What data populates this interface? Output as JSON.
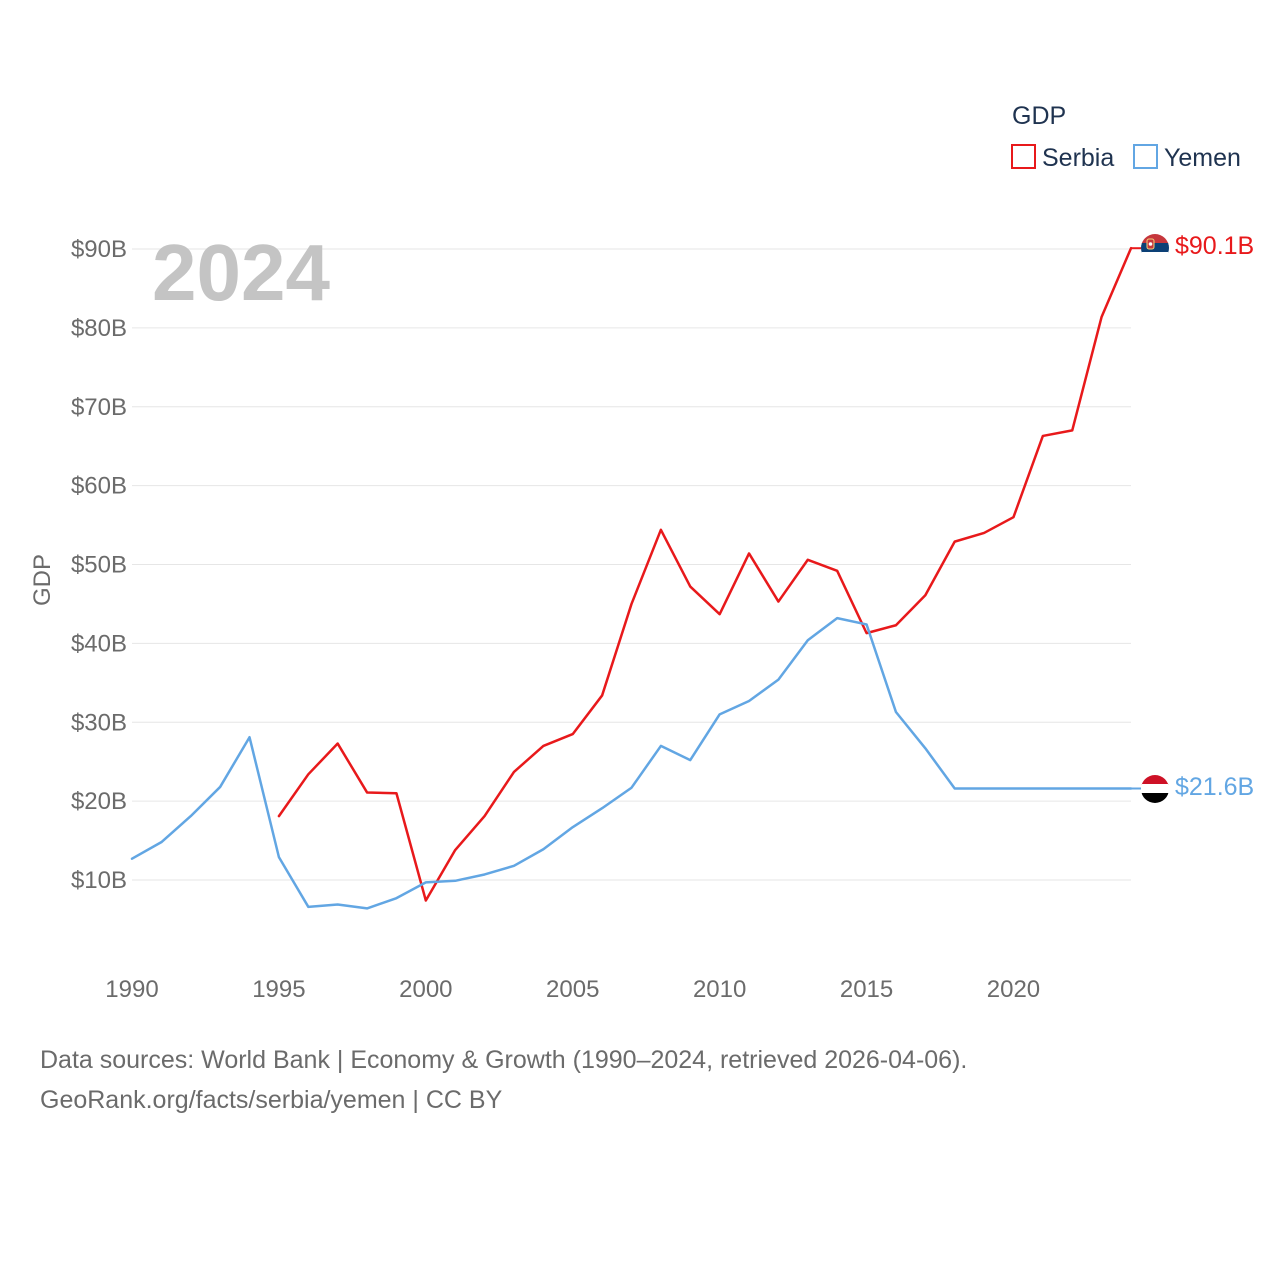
{
  "chart_data": {
    "type": "line",
    "year_label": "2024",
    "ylabel": "GDP",
    "legend_title": "GDP",
    "ylim": [
      0,
      95
    ],
    "xlim": [
      1990,
      2024
    ],
    "x_ticks": [
      1990,
      1995,
      2000,
      2005,
      2010,
      2015,
      2020
    ],
    "y_ticks": [
      {
        "value": 10,
        "label": "$10B"
      },
      {
        "value": 20,
        "label": "$20B"
      },
      {
        "value": 30,
        "label": "$30B"
      },
      {
        "value": 40,
        "label": "$40B"
      },
      {
        "value": 50,
        "label": "$50B"
      },
      {
        "value": 60,
        "label": "$60B"
      },
      {
        "value": 70,
        "label": "$70B"
      },
      {
        "value": 80,
        "label": "$80B"
      },
      {
        "value": 90,
        "label": "$90B"
      }
    ],
    "series": [
      {
        "name": "Serbia",
        "color": "#e8191b",
        "end_label": "$90.1B",
        "flag": "serbia-flag",
        "x": [
          1995,
          1996,
          1997,
          1998,
          1999,
          2000,
          2001,
          2002,
          2003,
          2004,
          2005,
          2006,
          2007,
          2008,
          2009,
          2010,
          2011,
          2012,
          2013,
          2014,
          2015,
          2016,
          2017,
          2018,
          2019,
          2020,
          2021,
          2022,
          2023,
          2024
        ],
        "values": [
          18.1,
          23.4,
          27.3,
          21.1,
          21.0,
          7.4,
          13.8,
          18.1,
          23.7,
          27.0,
          28.5,
          33.4,
          45.0,
          54.4,
          47.2,
          43.7,
          51.4,
          45.3,
          50.6,
          49.2,
          41.3,
          42.3,
          46.1,
          52.9,
          54.0,
          56.0,
          66.3,
          67.0,
          81.4,
          90.1
        ]
      },
      {
        "name": "Yemen",
        "color": "#62a6e3",
        "end_label": "$21.6B",
        "flag": "yemen-flag",
        "x": [
          1990,
          1991,
          1992,
          1993,
          1994,
          1995,
          1996,
          1997,
          1998,
          1999,
          2000,
          2001,
          2002,
          2003,
          2004,
          2005,
          2006,
          2007,
          2008,
          2009,
          2010,
          2011,
          2012,
          2013,
          2014,
          2015,
          2016,
          2017,
          2018,
          2019,
          2020,
          2021,
          2022,
          2023,
          2024
        ],
        "values": [
          12.7,
          14.8,
          18.1,
          21.8,
          28.1,
          12.9,
          6.6,
          6.9,
          6.4,
          7.7,
          9.7,
          9.9,
          10.7,
          11.8,
          13.9,
          16.7,
          19.1,
          21.7,
          27.0,
          25.2,
          31.0,
          32.7,
          35.4,
          40.4,
          43.2,
          42.4,
          31.3,
          26.7,
          21.6,
          21.6,
          21.6,
          21.6,
          21.6,
          21.6,
          21.6
        ]
      }
    ]
  },
  "footer": {
    "line1": "Data sources: World Bank | Economy & Growth (1990–2024, retrieved 2026-04-06).",
    "line2": "GeoRank.org/facts/serbia/yemen | CC BY"
  }
}
